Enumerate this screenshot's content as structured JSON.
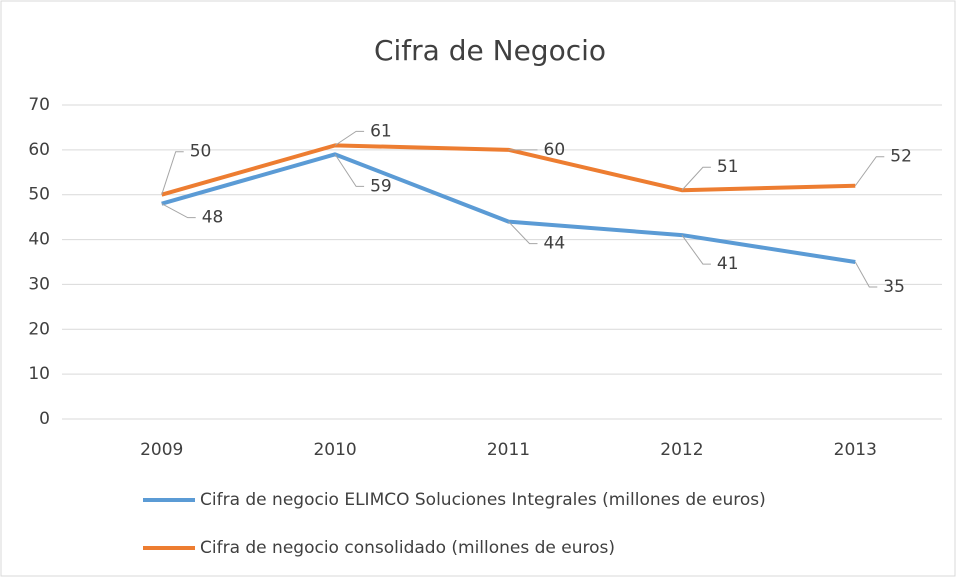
{
  "chart_data": {
    "type": "line",
    "title": "Cifra de Negocio",
    "categories": [
      "2009",
      "2010",
      "2011",
      "2012",
      "2013"
    ],
    "series": [
      {
        "name": "Cifra de negocio ELIMCO Soluciones Integrales (millones de euros)",
        "color": "#5b9bd5",
        "values": [
          48,
          59,
          44,
          41,
          35
        ]
      },
      {
        "name": "Cifra de negocio consolidado (millones de euros)",
        "color": "#ed7d31",
        "values": [
          50,
          61,
          60,
          51,
          52
        ]
      }
    ],
    "ylim": [
      0,
      70
    ],
    "yticks": [
      0,
      10,
      20,
      30,
      40,
      50,
      60,
      70
    ],
    "grid": true,
    "legend": "bottom"
  }
}
